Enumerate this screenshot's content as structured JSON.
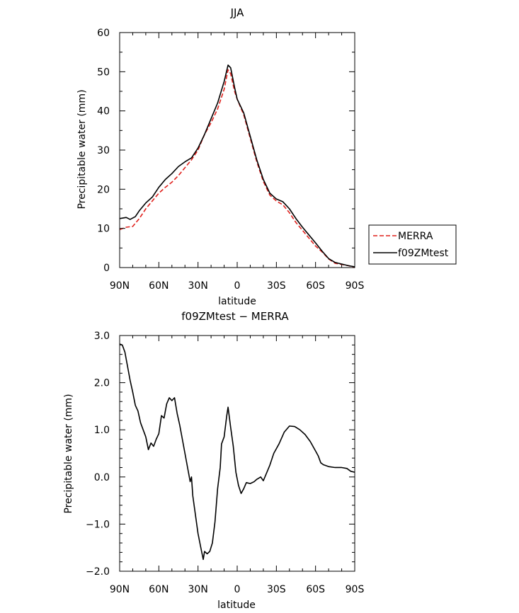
{
  "chart_data": [
    {
      "type": "line",
      "title": "JJA",
      "xlabel": "latitude",
      "ylabel": "Precipitable water (mm)",
      "xlim": [
        90,
        -90
      ],
      "ylim": [
        0,
        60
      ],
      "x_ticks": [
        90,
        60,
        30,
        0,
        -30,
        -60,
        -90
      ],
      "x_tick_labels": [
        "90N",
        "60N",
        "30N",
        "0",
        "30S",
        "60S",
        "90S"
      ],
      "y_ticks": [
        0,
        10,
        20,
        30,
        40,
        50,
        60
      ],
      "y_tick_labels": [
        "0",
        "10",
        "20",
        "30",
        "40",
        "50",
        "60"
      ],
      "legend_position": "right",
      "series": [
        {
          "name": "MERRA",
          "color": "#e0201c",
          "dash": "dashed",
          "points": [
            [
              90,
              9.7
            ],
            [
              85,
              10.3
            ],
            [
              80,
              10.5
            ],
            [
              75,
              12.5
            ],
            [
              70,
              15.0
            ],
            [
              65,
              17.0
            ],
            [
              60,
              19.0
            ],
            [
              55,
              20.5
            ],
            [
              50,
              21.8
            ],
            [
              45,
              23.5
            ],
            [
              40,
              25.5
            ],
            [
              35,
              27.5
            ],
            [
              30,
              30.0
            ],
            [
              25,
              34.0
            ],
            [
              20,
              37.0
            ],
            [
              15,
              40.5
            ],
            [
              10,
              45.5
            ],
            [
              7,
              50.5
            ],
            [
              5,
              49.5
            ],
            [
              2,
              45.0
            ],
            [
              0,
              43.0
            ],
            [
              -5,
              39.0
            ],
            [
              -10,
              33.0
            ],
            [
              -15,
              27.0
            ],
            [
              -20,
              22.0
            ],
            [
              -25,
              18.5
            ],
            [
              -30,
              17.0
            ],
            [
              -35,
              16.0
            ],
            [
              -40,
              14.0
            ],
            [
              -45,
              11.5
            ],
            [
              -50,
              9.5
            ],
            [
              -55,
              7.5
            ],
            [
              -60,
              5.5
            ],
            [
              -65,
              4.0
            ],
            [
              -70,
              2.2
            ],
            [
              -75,
              1.1
            ],
            [
              -80,
              0.8
            ],
            [
              -85,
              0.5
            ],
            [
              -90,
              0.0
            ]
          ]
        },
        {
          "name": "f09ZMtest",
          "color": "#000000",
          "dash": "solid",
          "points": [
            [
              90,
              12.5
            ],
            [
              85,
              12.8
            ],
            [
              82,
              12.3
            ],
            [
              78,
              13.0
            ],
            [
              75,
              14.5
            ],
            [
              70,
              16.5
            ],
            [
              65,
              18.0
            ],
            [
              60,
              20.5
            ],
            [
              55,
              22.5
            ],
            [
              50,
              24.0
            ],
            [
              45,
              25.8
            ],
            [
              40,
              27.0
            ],
            [
              35,
              28.0
            ],
            [
              30,
              30.5
            ],
            [
              25,
              34.0
            ],
            [
              20,
              38.0
            ],
            [
              15,
              42.0
            ],
            [
              10,
              47.5
            ],
            [
              7,
              51.7
            ],
            [
              5,
              51.0
            ],
            [
              2,
              46.0
            ],
            [
              0,
              43.0
            ],
            [
              -5,
              39.5
            ],
            [
              -10,
              33.5
            ],
            [
              -15,
              27.5
            ],
            [
              -20,
              22.5
            ],
            [
              -25,
              19.0
            ],
            [
              -30,
              17.5
            ],
            [
              -35,
              16.8
            ],
            [
              -40,
              15.0
            ],
            [
              -45,
              12.5
            ],
            [
              -50,
              10.3
            ],
            [
              -55,
              8.3
            ],
            [
              -60,
              6.3
            ],
            [
              -65,
              4.2
            ],
            [
              -70,
              2.3
            ],
            [
              -75,
              1.3
            ],
            [
              -80,
              0.9
            ],
            [
              -85,
              0.5
            ],
            [
              -90,
              0.2
            ]
          ]
        }
      ]
    },
    {
      "type": "line",
      "title": "f09ZMtest − MERRA",
      "xlabel": "latitude",
      "ylabel": "Precipitable water (mm)",
      "xlim": [
        90,
        -90
      ],
      "ylim": [
        -2.0,
        3.0
      ],
      "x_ticks": [
        90,
        60,
        30,
        0,
        -30,
        -60,
        -90
      ],
      "x_tick_labels": [
        "90N",
        "60N",
        "30N",
        "0",
        "30S",
        "60S",
        "90S"
      ],
      "y_ticks": [
        -2.0,
        -1.0,
        0.0,
        1.0,
        2.0,
        3.0
      ],
      "y_tick_labels": [
        "−2.0",
        "−1.0",
        "0.0",
        "1.0",
        "2.0",
        "3.0"
      ],
      "series": [
        {
          "color": "#000000",
          "dash": "solid",
          "points": [
            [
              90,
              2.82
            ],
            [
              88,
              2.8
            ],
            [
              86,
              2.65
            ],
            [
              84,
              2.35
            ],
            [
              82,
              2.05
            ],
            [
              80,
              1.8
            ],
            [
              78,
              1.52
            ],
            [
              76,
              1.4
            ],
            [
              74,
              1.15
            ],
            [
              72,
              1.0
            ],
            [
              70,
              0.85
            ],
            [
              68,
              0.58
            ],
            [
              66,
              0.72
            ],
            [
              64,
              0.65
            ],
            [
              62,
              0.8
            ],
            [
              60,
              0.92
            ],
            [
              58,
              1.3
            ],
            [
              56,
              1.25
            ],
            [
              54,
              1.55
            ],
            [
              52,
              1.68
            ],
            [
              50,
              1.62
            ],
            [
              48,
              1.68
            ],
            [
              46,
              1.35
            ],
            [
              44,
              1.1
            ],
            [
              42,
              0.8
            ],
            [
              40,
              0.5
            ],
            [
              38,
              0.2
            ],
            [
              36,
              -0.1
            ],
            [
              35,
              0.0
            ],
            [
              34,
              -0.4
            ],
            [
              32,
              -0.8
            ],
            [
              30,
              -1.2
            ],
            [
              28,
              -1.48
            ],
            [
              26,
              -1.75
            ],
            [
              25,
              -1.58
            ],
            [
              23,
              -1.63
            ],
            [
              21,
              -1.58
            ],
            [
              19,
              -1.4
            ],
            [
              17,
              -0.95
            ],
            [
              15,
              -0.25
            ],
            [
              13,
              0.2
            ],
            [
              12,
              0.7
            ],
            [
              10,
              0.85
            ],
            [
              8,
              1.3
            ],
            [
              7,
              1.48
            ],
            [
              5,
              1.05
            ],
            [
              3,
              0.65
            ],
            [
              1,
              0.1
            ],
            [
              -1,
              -0.18
            ],
            [
              -3,
              -0.35
            ],
            [
              -5,
              -0.25
            ],
            [
              -7,
              -0.12
            ],
            [
              -10,
              -0.14
            ],
            [
              -13,
              -0.1
            ],
            [
              -15,
              -0.05
            ],
            [
              -18,
              0.0
            ],
            [
              -20,
              -0.08
            ],
            [
              -22,
              0.05
            ],
            [
              -25,
              0.25
            ],
            [
              -28,
              0.5
            ],
            [
              -32,
              0.7
            ],
            [
              -36,
              0.95
            ],
            [
              -40,
              1.08
            ],
            [
              -44,
              1.07
            ],
            [
              -48,
              1.0
            ],
            [
              -52,
              0.9
            ],
            [
              -56,
              0.75
            ],
            [
              -60,
              0.55
            ],
            [
              -62,
              0.45
            ],
            [
              -64,
              0.3
            ],
            [
              -66,
              0.26
            ],
            [
              -70,
              0.22
            ],
            [
              -75,
              0.2
            ],
            [
              -80,
              0.2
            ],
            [
              -84,
              0.18
            ],
            [
              -87,
              0.12
            ],
            [
              -90,
              0.1
            ]
          ]
        }
      ]
    }
  ]
}
